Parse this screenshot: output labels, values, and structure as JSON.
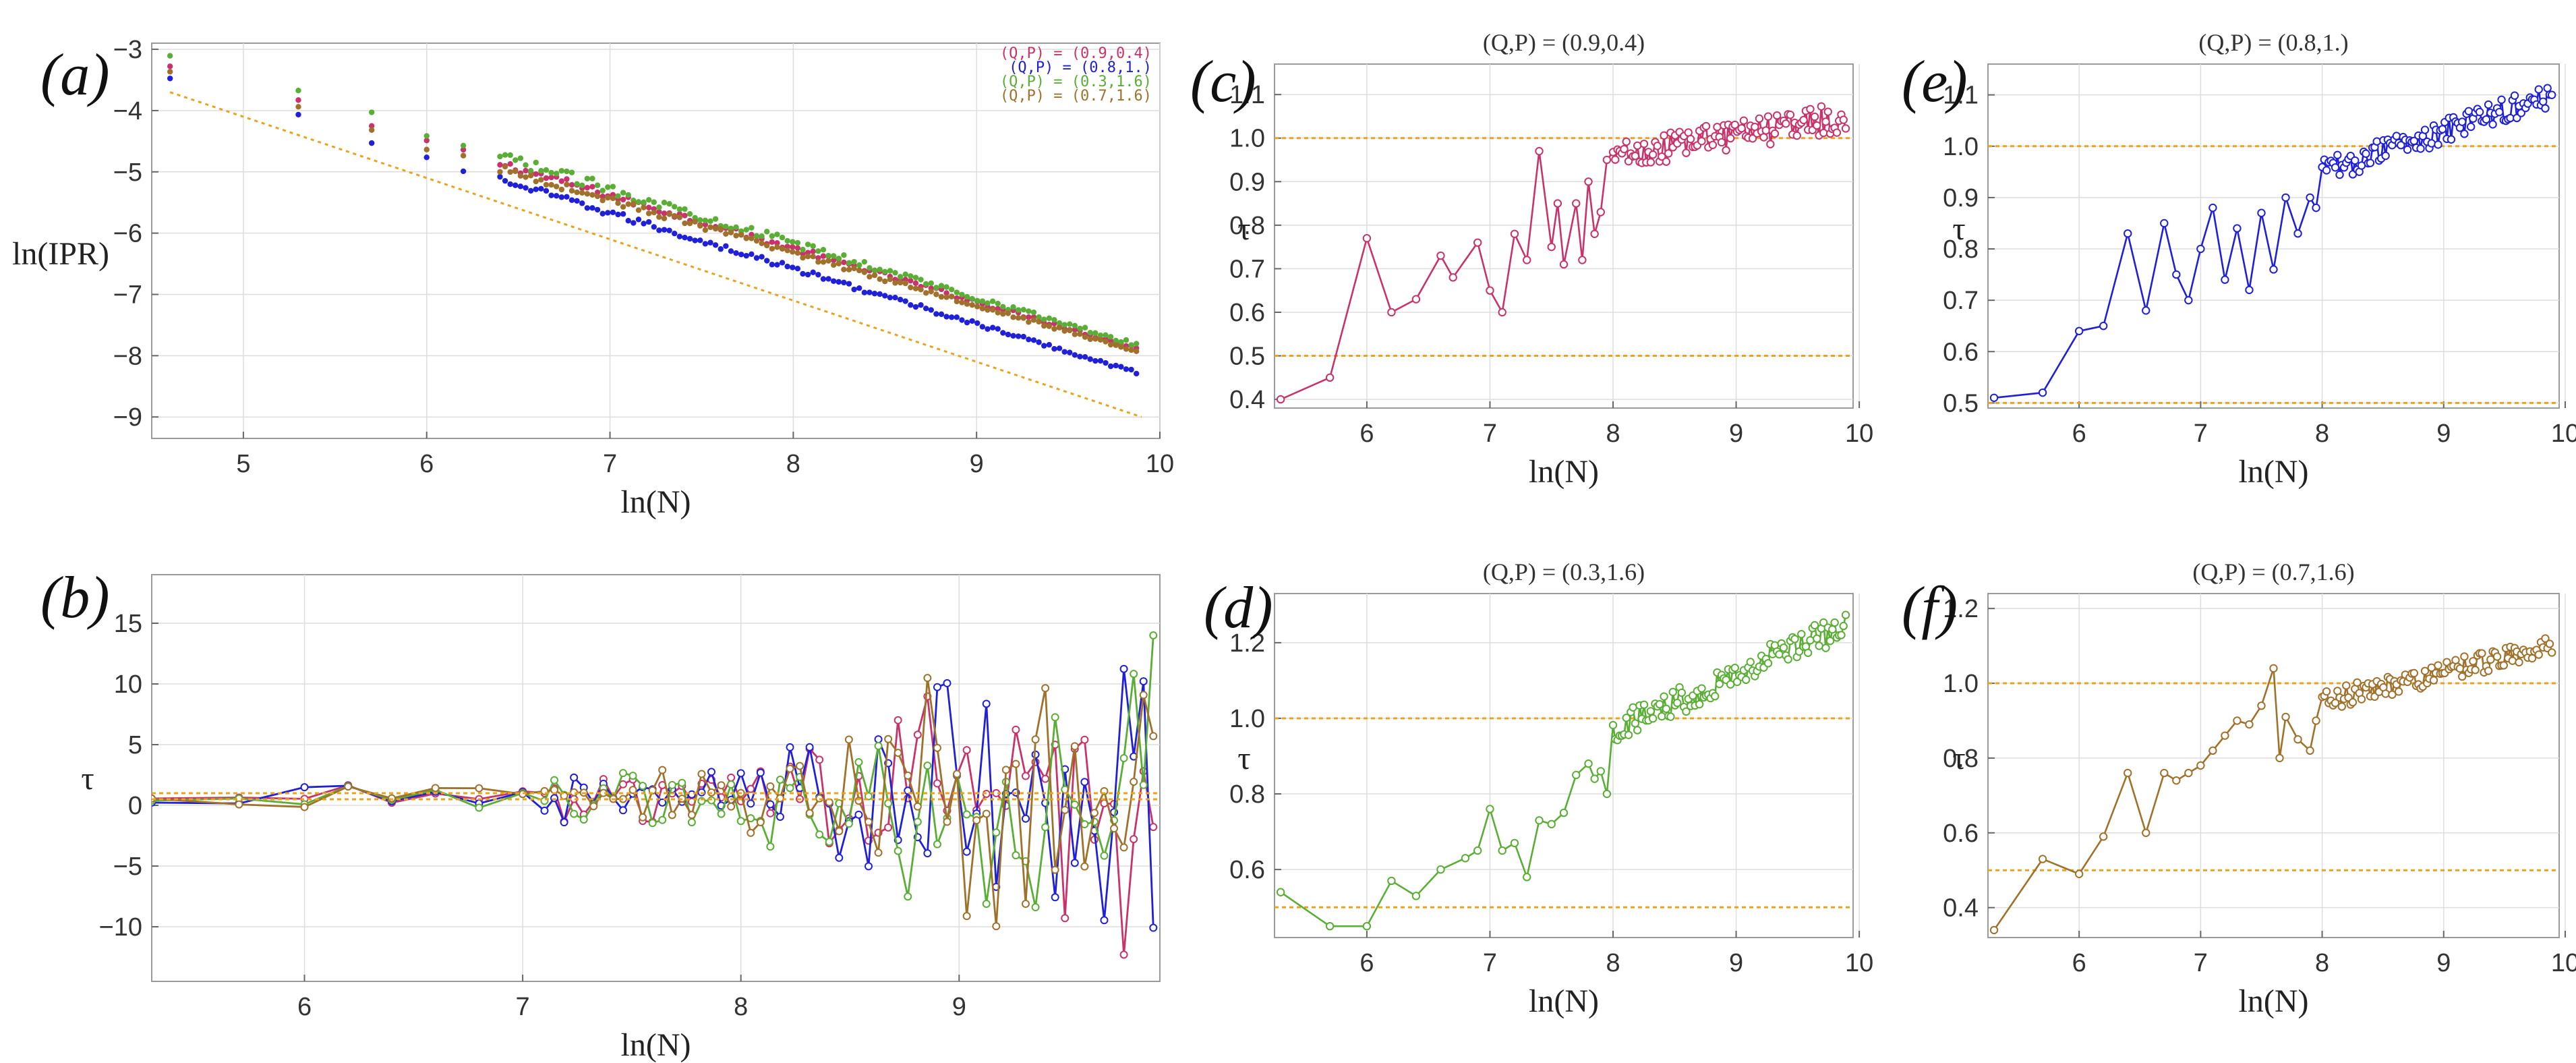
{
  "colors": {
    "p1": "#c8336b",
    "p2": "#1f20d8",
    "p3": "#5aae35",
    "p4": "#a0712a",
    "ref": "#e8a41c",
    "grid": "#dddddd",
    "frame": "#9a9a9a"
  },
  "chart_data": [
    {
      "id": "a",
      "type": "scatter",
      "panel_label": "(a)",
      "title": "",
      "xlabel": "ln(N)",
      "ylabel": "ln(IPR)",
      "xlim": [
        4.5,
        10.0
      ],
      "ylim": [
        -9.35,
        -2.9
      ],
      "xticks": [
        5,
        6,
        7,
        8,
        9,
        10
      ],
      "yticks": [
        -9,
        -8,
        -7,
        -6,
        -5,
        -4,
        -3
      ],
      "grid": true,
      "legend_position": "top-right",
      "series": [
        {
          "name": "(Q,P) = (0.9,0.4)",
          "color_key": "p1",
          "start": -3.3,
          "end": -7.9,
          "noise": 0.09
        },
        {
          "name": "(Q,P) = (0.8,1.)",
          "color_key": "p2",
          "start": -3.5,
          "end": -8.3,
          "noise": 0.08
        },
        {
          "name": "(Q,P) = (0.3,1.6)",
          "color_key": "p3",
          "start": -3.15,
          "end": -7.85,
          "noise": 0.12
        },
        {
          "name": "(Q,P) = (0.7,1.6)",
          "color_key": "p4",
          "start": -3.4,
          "end": -7.95,
          "noise": 0.08
        }
      ],
      "reference_line": {
        "x": [
          4.6,
          9.9
        ],
        "y": [
          -3.7,
          -9.0
        ]
      }
    },
    {
      "id": "b",
      "type": "line",
      "panel_label": "(b)",
      "title": "",
      "xlabel": "ln(N)",
      "ylabel": "τ",
      "xlim": [
        5.3,
        9.92
      ],
      "ylim": [
        -14.5,
        19.0
      ],
      "xticks": [
        6,
        7,
        8,
        9
      ],
      "yticks": [
        -10,
        -5,
        0,
        5,
        10,
        15
      ],
      "grid": true,
      "series_colors": [
        "p1",
        "p2",
        "p3",
        "p4"
      ],
      "amplitude_envelope": {
        "x": [
          5.3,
          8.0,
          9.0,
          9.9
        ],
        "amp": [
          0.4,
          2.5,
          9.0,
          13.0
        ]
      },
      "reference_lines": [
        0.5,
        1.0
      ]
    },
    {
      "id": "c",
      "type": "line",
      "panel_label": "(c)",
      "title": "(Q,P) = (0.9,0.4)",
      "xlabel": "ln(N)",
      "ylabel": "τ",
      "color_key": "p1",
      "xlim": [
        5.25,
        9.95
      ],
      "ylim": [
        0.38,
        1.17
      ],
      "xticks": [
        6,
        7,
        8,
        9,
        10
      ],
      "yticks": [
        0.4,
        0.5,
        0.6,
        0.7,
        0.8,
        0.9,
        1.0,
        1.1
      ],
      "ytick_labels": [
        "0.4",
        "0.5",
        "0.6",
        "0.7",
        "0.8",
        "0.9",
        "1.0",
        "1.1"
      ],
      "grid": true,
      "reference_lines": [
        0.5,
        1.0
      ],
      "points": [
        [
          5.3,
          0.4
        ],
        [
          5.7,
          0.45
        ],
        [
          6.0,
          0.77
        ],
        [
          6.2,
          0.6
        ],
        [
          6.4,
          0.63
        ],
        [
          6.6,
          0.73
        ],
        [
          6.7,
          0.68
        ],
        [
          6.9,
          0.76
        ],
        [
          7.0,
          0.65
        ],
        [
          7.1,
          0.6
        ],
        [
          7.2,
          0.78
        ],
        [
          7.3,
          0.72
        ],
        [
          7.4,
          0.97
        ],
        [
          7.5,
          0.75
        ],
        [
          7.55,
          0.85
        ],
        [
          7.6,
          0.71
        ],
        [
          7.7,
          0.85
        ],
        [
          7.75,
          0.72
        ],
        [
          7.8,
          0.9
        ],
        [
          7.85,
          0.78
        ],
        [
          7.9,
          0.83
        ],
        [
          7.95,
          0.95
        ]
      ],
      "trend": {
        "x": [
          8.0,
          9.9
        ],
        "y": [
          0.96,
          1.05
        ],
        "noise": 0.035
      }
    },
    {
      "id": "d",
      "type": "line",
      "panel_label": "(d)",
      "title": "(Q,P) = (0.3,1.6)",
      "xlabel": "ln(N)",
      "ylabel": "τ",
      "color_key": "p3",
      "xlim": [
        5.25,
        9.95
      ],
      "ylim": [
        0.42,
        1.33
      ],
      "xticks": [
        6,
        7,
        8,
        9,
        10
      ],
      "yticks": [
        0.6,
        0.8,
        1.0,
        1.2
      ],
      "ytick_labels": [
        "0.6",
        "0.8",
        "1.0",
        "1.2"
      ],
      "grid": true,
      "reference_lines": [
        0.5,
        1.0
      ],
      "points": [
        [
          5.3,
          0.54
        ],
        [
          5.7,
          0.45
        ],
        [
          6.0,
          0.45
        ],
        [
          6.2,
          0.57
        ],
        [
          6.4,
          0.53
        ],
        [
          6.6,
          0.6
        ],
        [
          6.8,
          0.63
        ],
        [
          6.9,
          0.65
        ],
        [
          7.0,
          0.76
        ],
        [
          7.1,
          0.65
        ],
        [
          7.2,
          0.67
        ],
        [
          7.3,
          0.58
        ],
        [
          7.4,
          0.73
        ],
        [
          7.5,
          0.72
        ],
        [
          7.6,
          0.75
        ],
        [
          7.7,
          0.85
        ],
        [
          7.8,
          0.88
        ],
        [
          7.85,
          0.84
        ],
        [
          7.9,
          0.86
        ],
        [
          7.95,
          0.8
        ]
      ],
      "trend": {
        "x": [
          8.0,
          9.9
        ],
        "y": [
          0.97,
          1.25
        ],
        "noise": 0.04
      }
    },
    {
      "id": "e",
      "type": "line",
      "panel_label": "(e)",
      "title": "(Q,P) = (0.8,1.)",
      "xlabel": "ln(N)",
      "ylabel": "τ",
      "color_key": "p2",
      "xlim": [
        5.25,
        9.95
      ],
      "ylim": [
        0.49,
        1.16
      ],
      "xticks": [
        6,
        7,
        8,
        9,
        10
      ],
      "yticks": [
        0.5,
        0.6,
        0.7,
        0.8,
        0.9,
        1.0,
        1.1
      ],
      "ytick_labels": [
        "0.5",
        "0.6",
        "0.7",
        "0.8",
        "0.9",
        "1.0",
        "1.1"
      ],
      "grid": true,
      "reference_lines": [
        0.5,
        1.0
      ],
      "points": [
        [
          5.3,
          0.51
        ],
        [
          5.7,
          0.52
        ],
        [
          6.0,
          0.64
        ],
        [
          6.2,
          0.65
        ],
        [
          6.4,
          0.83
        ],
        [
          6.55,
          0.68
        ],
        [
          6.7,
          0.85
        ],
        [
          6.8,
          0.75
        ],
        [
          6.9,
          0.7
        ],
        [
          7.0,
          0.8
        ],
        [
          7.1,
          0.88
        ],
        [
          7.2,
          0.74
        ],
        [
          7.3,
          0.84
        ],
        [
          7.4,
          0.72
        ],
        [
          7.5,
          0.87
        ],
        [
          7.6,
          0.76
        ],
        [
          7.7,
          0.9
        ],
        [
          7.8,
          0.83
        ],
        [
          7.9,
          0.9
        ],
        [
          7.95,
          0.88
        ]
      ],
      "trend": {
        "x": [
          8.0,
          9.9
        ],
        "y": [
          0.95,
          1.1
        ],
        "noise": 0.025
      }
    },
    {
      "id": "f",
      "type": "line",
      "panel_label": "(f)",
      "title": "(Q,P) = (0.7,1.6)",
      "xlabel": "ln(N)",
      "ylabel": "τ",
      "color_key": "p4",
      "xlim": [
        5.25,
        9.95
      ],
      "ylim": [
        0.32,
        1.24
      ],
      "xticks": [
        6,
        7,
        8,
        9,
        10
      ],
      "yticks": [
        0.4,
        0.6,
        0.8,
        1.0,
        1.2
      ],
      "ytick_labels": [
        "0.4",
        "0.6",
        "0.8",
        "1.0",
        "1.2"
      ],
      "grid": true,
      "reference_lines": [
        0.5,
        1.0
      ],
      "points": [
        [
          5.3,
          0.34
        ],
        [
          5.7,
          0.53
        ],
        [
          6.0,
          0.49
        ],
        [
          6.2,
          0.59
        ],
        [
          6.4,
          0.76
        ],
        [
          6.55,
          0.6
        ],
        [
          6.7,
          0.76
        ],
        [
          6.8,
          0.74
        ],
        [
          6.9,
          0.76
        ],
        [
          7.0,
          0.78
        ],
        [
          7.1,
          0.82
        ],
        [
          7.2,
          0.86
        ],
        [
          7.3,
          0.9
        ],
        [
          7.4,
          0.89
        ],
        [
          7.5,
          0.94
        ],
        [
          7.6,
          1.04
        ],
        [
          7.65,
          0.8
        ],
        [
          7.7,
          0.91
        ],
        [
          7.8,
          0.85
        ],
        [
          7.9,
          0.82
        ],
        [
          7.95,
          0.9
        ]
      ],
      "trend": {
        "x": [
          8.0,
          9.9
        ],
        "y": [
          0.95,
          1.1
        ],
        "noise": 0.03
      }
    }
  ]
}
